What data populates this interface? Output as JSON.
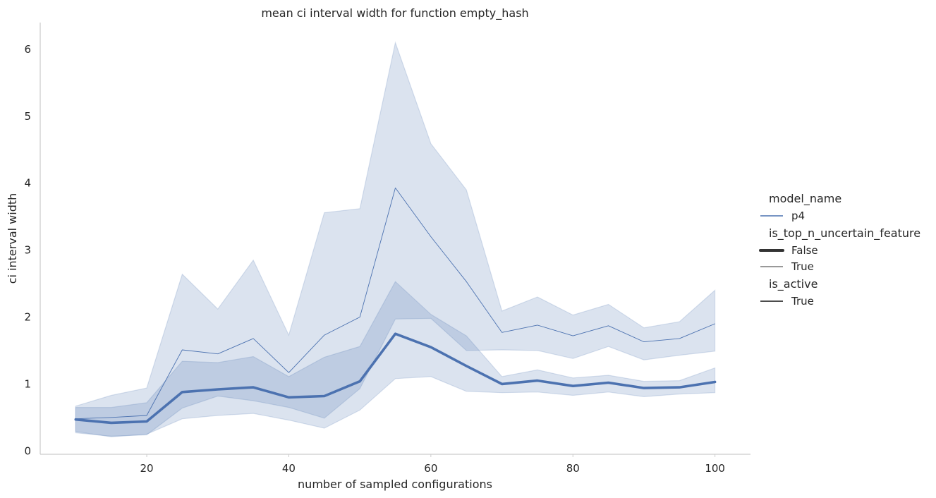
{
  "chart_data": {
    "type": "line",
    "title": "mean ci interval width for function empty_hash",
    "xlabel": "number of sampled configurations",
    "ylabel": "ci interval width",
    "xlim": [
      5,
      105
    ],
    "ylim": [
      -0.05,
      6.4
    ],
    "xticks": [
      20,
      40,
      60,
      80,
      100
    ],
    "yticks": [
      0,
      1,
      2,
      3,
      4,
      5,
      6
    ],
    "grid": false,
    "legend_position": "right",
    "color": "#4c72b0",
    "x": [
      10,
      15,
      20,
      25,
      30,
      35,
      40,
      45,
      50,
      55,
      60,
      65,
      70,
      75,
      80,
      85,
      90,
      95,
      100
    ],
    "series": [
      {
        "is_top_n_uncertain_feature": "False",
        "values": [
          0.47,
          0.42,
          0.44,
          0.88,
          0.92,
          0.95,
          0.8,
          0.82,
          1.04,
          1.75,
          1.55,
          1.27,
          1.0,
          1.05,
          0.97,
          1.02,
          0.94,
          0.95,
          1.03
        ],
        "ci_lower": [
          0.29,
          0.21,
          0.25,
          0.48,
          0.53,
          0.56,
          0.46,
          0.34,
          0.61,
          1.08,
          1.11,
          0.89,
          0.87,
          0.88,
          0.83,
          0.88,
          0.81,
          0.85,
          0.87
        ],
        "ci_upper": [
          0.65,
          0.65,
          0.72,
          1.34,
          1.32,
          1.41,
          1.11,
          1.4,
          1.56,
          2.53,
          2.04,
          1.72,
          1.11,
          1.21,
          1.09,
          1.13,
          1.04,
          1.05,
          1.24
        ]
      },
      {
        "is_top_n_uncertain_feature": "True",
        "values": [
          0.48,
          0.5,
          0.53,
          1.51,
          1.45,
          1.68,
          1.17,
          1.73,
          2.0,
          3.93,
          3.2,
          2.53,
          1.77,
          1.88,
          1.72,
          1.87,
          1.63,
          1.68,
          1.9
        ],
        "ci_lower": [
          0.27,
          0.22,
          0.24,
          0.64,
          0.82,
          0.75,
          0.65,
          0.49,
          0.93,
          1.97,
          1.98,
          1.5,
          1.51,
          1.5,
          1.38,
          1.56,
          1.36,
          1.43,
          1.49
        ],
        "ci_upper": [
          0.67,
          0.83,
          0.94,
          2.64,
          2.12,
          2.85,
          1.73,
          3.56,
          3.62,
          6.1,
          4.59,
          3.9,
          2.09,
          2.3,
          2.03,
          2.19,
          1.84,
          1.93,
          2.4
        ]
      }
    ],
    "legend": {
      "groups": [
        {
          "title": "model_name",
          "entries": [
            {
              "label": "p4",
              "style": "hue"
            }
          ]
        },
        {
          "title": "is_top_n_uncertain_feature",
          "entries": [
            {
              "label": "False",
              "style": "thick"
            },
            {
              "label": "True",
              "style": "thin"
            }
          ]
        },
        {
          "title": "is_active",
          "entries": [
            {
              "label": "True",
              "style": "dash"
            }
          ]
        }
      ]
    }
  }
}
